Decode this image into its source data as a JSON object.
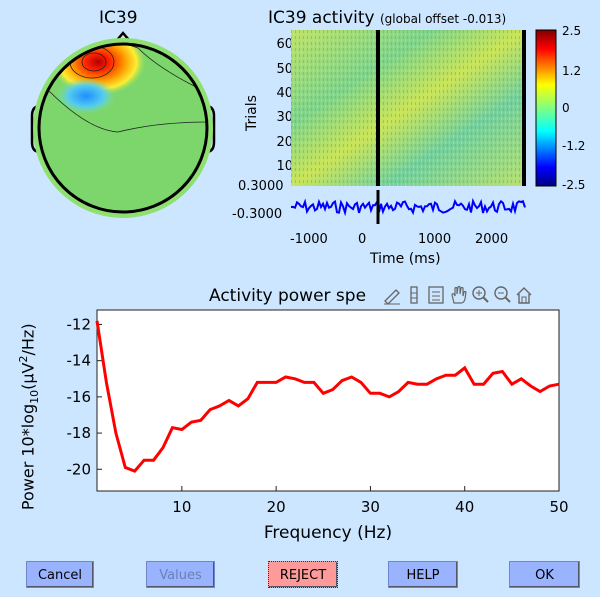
{
  "topo": {
    "title": "IC39"
  },
  "erpimage": {
    "title": "IC39 activity",
    "subtitle": "(global offset -0.013)",
    "ylabel": "Trials",
    "xlabel": "Time (ms)",
    "yticks": [
      "60",
      "50",
      "40",
      "30",
      "20",
      "10"
    ],
    "xticks": [
      "-1000",
      "0",
      "1000",
      "2000"
    ],
    "trace_ticks": [
      "0.3000",
      "-0.3000"
    ],
    "colorbar_ticks": [
      "2.5",
      "1.2",
      "0",
      "-1.2",
      "-2.5"
    ]
  },
  "toolbar": {
    "icons": [
      "edit-plot-icon",
      "insert-colorbar-icon",
      "insert-legend-icon",
      "pan-icon",
      "zoom-in-icon",
      "zoom-out-icon",
      "home-icon"
    ]
  },
  "chart_data": {
    "type": "line",
    "title": "Activity power spe",
    "xlabel": "Frequency (Hz)",
    "ylabel_main": "Power 10*log",
    "ylabel_sub": "10",
    "ylabel_tail": "(μV",
    "ylabel_sup": "2",
    "ylabel_end": "/Hz)",
    "xlim": [
      1,
      50
    ],
    "ylim": [
      -21.2,
      -11.2
    ],
    "xticks": [
      10,
      20,
      30,
      40,
      50
    ],
    "yticks": [
      -12,
      -14,
      -16,
      -18,
      -20
    ],
    "color": "#ff0000",
    "x": [
      1,
      2,
      3,
      4,
      5,
      6,
      7,
      8,
      9,
      10,
      11,
      12,
      13,
      14,
      15,
      16,
      17,
      18,
      19,
      20,
      21,
      22,
      23,
      24,
      25,
      26,
      27,
      28,
      29,
      30,
      31,
      32,
      33,
      34,
      35,
      36,
      37,
      38,
      39,
      40,
      41,
      42,
      43,
      44,
      45,
      46,
      47,
      48,
      49,
      50
    ],
    "y": [
      -11.8,
      -15.2,
      -18.0,
      -19.9,
      -20.1,
      -19.5,
      -19.5,
      -18.8,
      -17.7,
      -17.8,
      -17.4,
      -17.3,
      -16.7,
      -16.5,
      -16.2,
      -16.5,
      -16.1,
      -15.2,
      -15.2,
      -15.2,
      -14.9,
      -15.0,
      -15.2,
      -15.2,
      -15.8,
      -15.6,
      -15.1,
      -14.9,
      -15.2,
      -15.8,
      -15.8,
      -16.0,
      -15.7,
      -15.2,
      -15.3,
      -15.3,
      -15.0,
      -14.8,
      -14.8,
      -14.4,
      -15.3,
      -15.3,
      -14.7,
      -14.6,
      -15.3,
      -15.0,
      -15.4,
      -15.7,
      -15.4,
      -15.3
    ]
  },
  "buttons": {
    "cancel": "Cancel",
    "values": "Values",
    "reject": "REJECT",
    "help": "HELP",
    "ok": "OK"
  }
}
